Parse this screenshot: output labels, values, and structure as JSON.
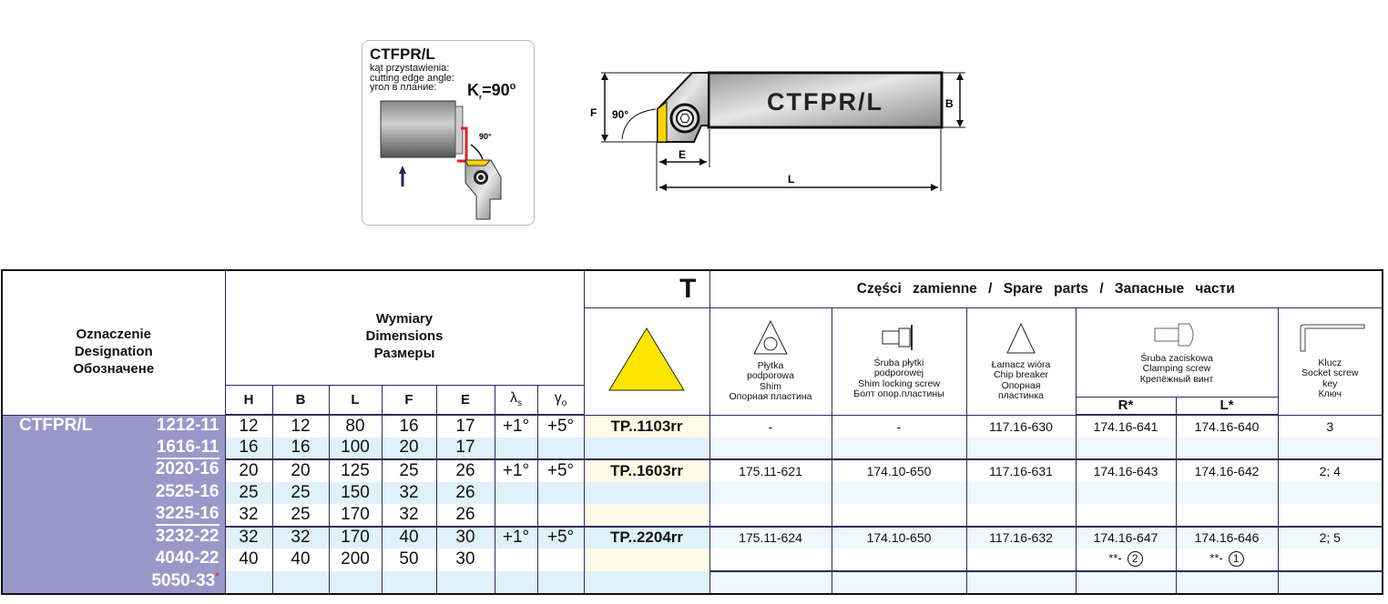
{
  "card": {
    "title": "CTFPR/L",
    "label_pl": "kąt przystawienia:",
    "label_en": "cutting edge angle:",
    "label_ru": "угол в плание:",
    "kr_symbol": "K",
    "kr_sub": "r",
    "kr_value": "=90",
    "kr_deg": "o",
    "angle": "90°"
  },
  "tool_drawing": {
    "name": "CTFPR/L",
    "dim_F": "F",
    "dim_B": "B",
    "dim_E": "E",
    "dim_L": "L",
    "angle": "90°"
  },
  "table": {
    "designation_header": [
      "Oznaczenie",
      "Designation",
      "Обозначене"
    ],
    "dimensions_header": [
      "Wymiary",
      "Dimensions",
      "Размеры"
    ],
    "dim_cols": [
      "H",
      "B",
      "L",
      "F",
      "E",
      "λs",
      "γo"
    ],
    "insert_header": "T",
    "spare_title": "Części  zamienne  /  Spare  parts  /  Запасные  части",
    "spare_cols": {
      "shim": [
        "Płytka",
        "podporowa",
        "Shim",
        "Опорная  пластина"
      ],
      "shim_screw": [
        "Śruba  płytki",
        "podporowej",
        "Shim  locking  screw",
        "Болт  опор.пластины"
      ],
      "chip": [
        "Łamacz  wióra",
        "Chip  breaker",
        "Опорная",
        "пластинка"
      ],
      "clamp": [
        "Śruba  zaciskowa",
        "Clamping  screw",
        "Крепёжный  винт"
      ],
      "clamp_R": "R*",
      "clamp_L": "L*",
      "key": [
        "Klucz",
        "Socket  screw",
        "key",
        "Ключ"
      ]
    },
    "prefix": "CTFPR/L",
    "rows": [
      {
        "code": "1212-11",
        "H": "12",
        "B": "12",
        "L": "80",
        "F": "16",
        "E": "17",
        "ls": "+1°",
        "go": "+5°",
        "insert": "TP..1103rr",
        "shim": "-",
        "shim_screw": "-",
        "chip": "117.16-630",
        "R": "174.16-641",
        "Lc": "174.16-640",
        "key": "3"
      },
      {
        "code": "1616-11",
        "H": "16",
        "B": "16",
        "L": "100",
        "F": "20",
        "E": "17",
        "ls": "",
        "go": "",
        "insert": "",
        "shim": "",
        "shim_screw": "",
        "chip": "",
        "R": "",
        "Lc": "",
        "key": ""
      },
      {
        "code": "2020-16",
        "H": "20",
        "B": "20",
        "L": "125",
        "F": "25",
        "E": "26",
        "ls": "+1°",
        "go": "+5°",
        "insert": "TP..1603rr",
        "shim": "175.11-621",
        "shim_screw": "174.10-650",
        "chip": "117.16-631",
        "R": "174.16-643",
        "Lc": "174.16-642",
        "key": "2; 4"
      },
      {
        "code": "2525-16",
        "H": "25",
        "B": "25",
        "L": "150",
        "F": "32",
        "E": "26",
        "ls": "",
        "go": "",
        "insert": "",
        "shim": "",
        "shim_screw": "",
        "chip": "",
        "R": "",
        "Lc": "",
        "key": ""
      },
      {
        "code": "3225-16",
        "H": "32",
        "B": "25",
        "L": "170",
        "F": "32",
        "E": "26",
        "ls": "",
        "go": "",
        "insert": "",
        "shim": "",
        "shim_screw": "",
        "chip": "",
        "R": "",
        "Lc": "",
        "key": ""
      },
      {
        "code": "3232-22",
        "H": "32",
        "B": "32",
        "L": "170",
        "F": "40",
        "E": "30",
        "ls": "+1°",
        "go": "+5°",
        "insert": "TP..2204rr",
        "shim": "175.11-624",
        "shim_screw": "174.10-650",
        "chip": "117.16-632",
        "R": "174.16-647",
        "Lc": "174.16-646",
        "key": "2; 5"
      },
      {
        "code": "4040-22",
        "H": "40",
        "B": "40",
        "L": "200",
        "F": "50",
        "E": "30",
        "ls": "",
        "go": "",
        "insert": "",
        "shim": "",
        "shim_screw": "",
        "chip": "",
        "R": "**-",
        "R_note": "2",
        "Lc": "**-",
        "L_note": "1",
        "key": ""
      },
      {
        "code": "5050-33",
        "star": "*",
        "H": "",
        "B": "",
        "L": "",
        "F": "",
        "E": "",
        "ls": "",
        "go": "",
        "insert": "",
        "shim": "",
        "shim_screw": "",
        "chip": "",
        "R": "",
        "Lc": "",
        "key": ""
      }
    ]
  },
  "colors": {
    "designation_bg": "#9c97c9",
    "row_alt": "#dff1fb",
    "insert_bg": "#fffbe6",
    "insert_triangle": "#ffe600"
  }
}
